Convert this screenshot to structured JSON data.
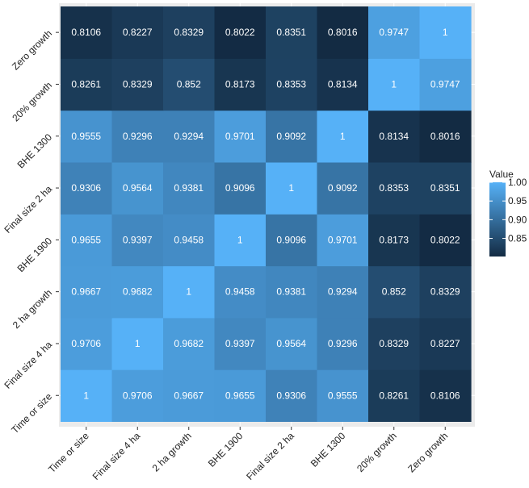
{
  "chart_data": {
    "type": "heatmap",
    "x_categories": [
      "Time or size",
      "Final size 4 ha",
      "2 ha growth",
      "BHE 1900",
      "Final size 2 ha",
      "BHE 1300",
      "20% growth",
      "Zero growth"
    ],
    "y_categories": [
      "Time or size",
      "Final size 4 ha",
      "2 ha growth",
      "BHE 1900",
      "Final size 2 ha",
      "BHE 1300",
      "20% growth",
      "Zero growth"
    ],
    "values": [
      [
        1,
        0.9706,
        0.9667,
        0.9655,
        0.9306,
        0.9555,
        0.8261,
        0.8106
      ],
      [
        0.9706,
        1,
        0.9682,
        0.9397,
        0.9564,
        0.9296,
        0.8329,
        0.8227
      ],
      [
        0.9667,
        0.9682,
        1,
        0.9458,
        0.9381,
        0.9294,
        0.852,
        0.8329
      ],
      [
        0.9655,
        0.9397,
        0.9458,
        1,
        0.9096,
        0.9701,
        0.8173,
        0.8022
      ],
      [
        0.9306,
        0.9564,
        0.9381,
        0.9096,
        1,
        0.9092,
        0.8353,
        0.8351
      ],
      [
        0.9555,
        0.9296,
        0.9294,
        0.9701,
        0.9092,
        1,
        0.8134,
        0.8016
      ],
      [
        0.8261,
        0.8329,
        0.852,
        0.8173,
        0.8353,
        0.8134,
        1,
        0.9747
      ],
      [
        0.8106,
        0.8227,
        0.8329,
        0.8022,
        0.8351,
        0.8016,
        0.9747,
        1
      ]
    ],
    "labels": [
      [
        "1",
        "0.9706",
        "0.9667",
        "0.9655",
        "0.9306",
        "0.9555",
        "0.8261",
        "0.8106"
      ],
      [
        "0.9706",
        "1",
        "0.9682",
        "0.9397",
        "0.9564",
        "0.9296",
        "0.8329",
        "0.8227"
      ],
      [
        "0.9667",
        "0.9682",
        "1",
        "0.9458",
        "0.9381",
        "0.9294",
        "0.852",
        "0.8329"
      ],
      [
        "0.9655",
        "0.9397",
        "0.9458",
        "1",
        "0.9096",
        "0.9701",
        "0.8173",
        "0.8022"
      ],
      [
        "0.9306",
        "0.9564",
        "0.9381",
        "0.9096",
        "1",
        "0.9092",
        "0.8353",
        "0.8351"
      ],
      [
        "0.9555",
        "0.9296",
        "0.9294",
        "0.9701",
        "0.9092",
        "1",
        "0.8134",
        "0.8016"
      ],
      [
        "0.8261",
        "0.8329",
        "0.852",
        "0.8173",
        "0.8353",
        "0.8134",
        "1",
        "0.9747"
      ],
      [
        "0.8106",
        "0.8227",
        "0.8329",
        "0.8022",
        "0.8351",
        "0.8016",
        "0.9747",
        "1"
      ]
    ],
    "value_range": [
      0.8016,
      1
    ],
    "legend": {
      "title": "Value",
      "position": "right",
      "breaks": [
        1.0,
        0.95,
        0.9,
        0.85
      ],
      "break_labels": [
        "1.00",
        "0.95",
        "0.90",
        "0.85"
      ]
    },
    "colors": {
      "low": "#132B43",
      "high": "#56B1F7",
      "panel_background": "#EBEBEB",
      "grid": "#FFFFFF"
    },
    "grid": true,
    "x_label_rotation_deg": 45,
    "y_label_rotation_deg": 45
  }
}
